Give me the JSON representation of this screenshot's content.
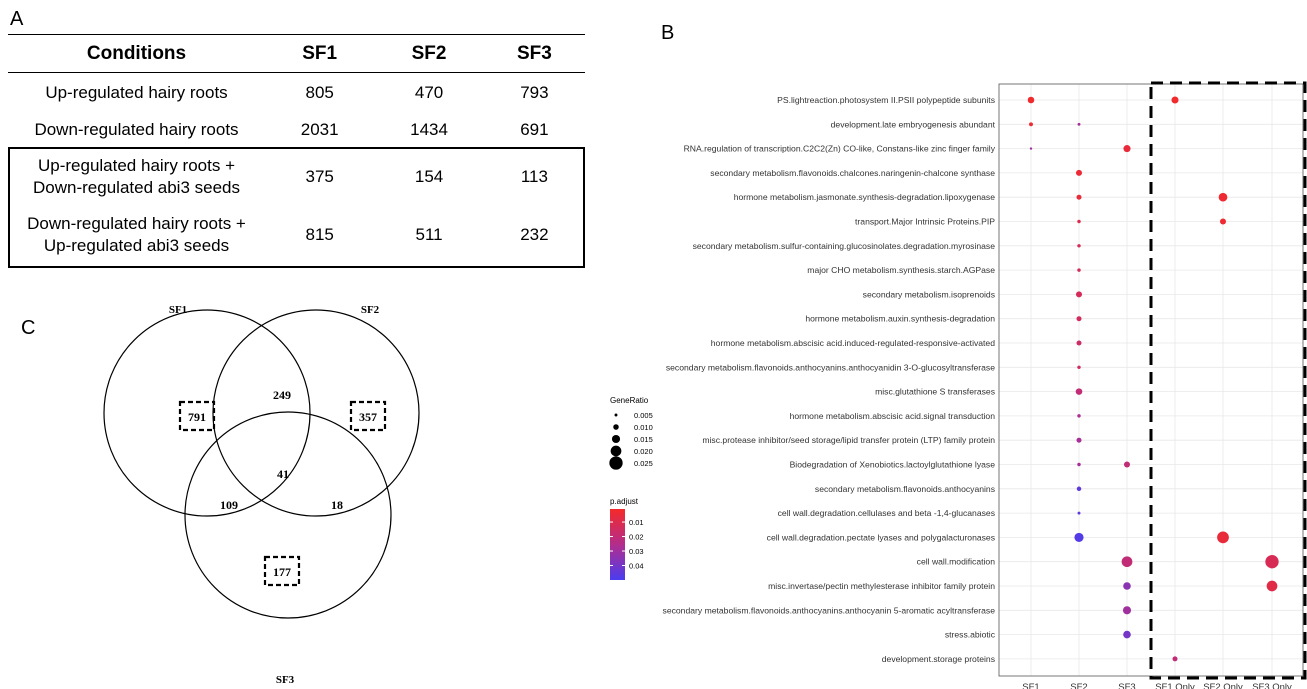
{
  "panels": {
    "a": "A",
    "b": "B",
    "c": "C"
  },
  "table": {
    "headers": [
      "Conditions",
      "SF1",
      "SF2",
      "SF3"
    ],
    "rows": [
      {
        "condition_line1": "Up-regulated hairy roots",
        "condition_line2": "",
        "sf1": "805",
        "sf2": "470",
        "sf3": "793"
      },
      {
        "condition_line1": "Down-regulated hairy roots",
        "condition_line2": "",
        "sf1": "2031",
        "sf2": "1434",
        "sf3": "691"
      },
      {
        "condition_line1": "Up-regulated hairy roots +",
        "condition_line2": "Down-regulated abi3 seeds",
        "sf1": "375",
        "sf2": "154",
        "sf3": "113"
      },
      {
        "condition_line1": "Down-regulated hairy roots +",
        "condition_line2": "Up-regulated abi3 seeds",
        "sf1": "815",
        "sf2": "511",
        "sf3": "232"
      }
    ]
  },
  "venn": {
    "labels": {
      "sf1": "SF1",
      "sf2": "SF2",
      "sf3": "SF3"
    },
    "regions": {
      "sf1_only": "791",
      "sf2_only": "357",
      "sf3_only": "177",
      "sf1_sf2": "249",
      "sf1_sf3": "109",
      "sf2_sf3": "18",
      "all": "41"
    }
  },
  "chart_data": {
    "type": "scatter",
    "x_categories": [
      "SF1",
      "SF2",
      "SF3",
      "SF1.Only",
      "SF2.Only",
      "SF3.Only"
    ],
    "y_categories": [
      "PS.lightreaction.photosystem II.PSII polypeptide subunits",
      "development.late embryogenesis abundant",
      "RNA.regulation of transcription.C2C2(Zn) CO-like, Constans-like zinc finger family",
      "secondary metabolism.flavonoids.chalcones.naringenin-chalcone synthase",
      "hormone metabolism.jasmonate.synthesis-degradation.lipoxygenase",
      "transport.Major Intrinsic Proteins.PIP",
      "secondary metabolism.sulfur-containing.glucosinolates.degradation.myrosinase",
      "major CHO metabolism.synthesis.starch.AGPase",
      "secondary metabolism.isoprenoids",
      "hormone metabolism.auxin.synthesis-degradation",
      "hormone metabolism.abscisic acid.induced-regulated-responsive-activated",
      "secondary metabolism.flavonoids.anthocyanins.anthocyanidin 3-O-glucosyltransferase",
      "misc.glutathione S transferases",
      "hormone metabolism.abscisic acid.signal transduction",
      "misc.protease inhibitor/seed storage/lipid transfer protein (LTP) family protein",
      "Biodegradation of Xenobiotics.lactoylglutathione lyase",
      "secondary metabolism.flavonoids.anthocyanins",
      "cell wall.degradation.cellulases and beta -1,4-glucanases",
      "cell wall.degradation.pectate lyases and polygalacturonases",
      "cell wall.modification",
      "misc.invertase/pectin methylesterase inhibitor family protein",
      "secondary metabolism.flavonoids.anthocyanins.anthocyanin 5-aromatic acyltransferase",
      "stress.abiotic",
      "development.storage proteins"
    ],
    "points": [
      {
        "x": "SF1",
        "y": 0,
        "gene_ratio": 0.012,
        "p_adjust": 0.002
      },
      {
        "x": "SF1.Only",
        "y": 0,
        "gene_ratio": 0.013,
        "p_adjust": 0.002
      },
      {
        "x": "SF1",
        "y": 1,
        "gene_ratio": 0.007,
        "p_adjust": 0.003
      },
      {
        "x": "SF2",
        "y": 1,
        "gene_ratio": 0.005,
        "p_adjust": 0.028
      },
      {
        "x": "SF1",
        "y": 2,
        "gene_ratio": 0.004,
        "p_adjust": 0.03
      },
      {
        "x": "SF3",
        "y": 2,
        "gene_ratio": 0.013,
        "p_adjust": 0.005
      },
      {
        "x": "SF2",
        "y": 3,
        "gene_ratio": 0.011,
        "p_adjust": 0.004
      },
      {
        "x": "SF2",
        "y": 4,
        "gene_ratio": 0.009,
        "p_adjust": 0.005
      },
      {
        "x": "SF2.Only",
        "y": 4,
        "gene_ratio": 0.016,
        "p_adjust": 0.003
      },
      {
        "x": "SF2",
        "y": 5,
        "gene_ratio": 0.006,
        "p_adjust": 0.01
      },
      {
        "x": "SF2.Only",
        "y": 5,
        "gene_ratio": 0.011,
        "p_adjust": 0.003
      },
      {
        "x": "SF2",
        "y": 6,
        "gene_ratio": 0.006,
        "p_adjust": 0.012
      },
      {
        "x": "SF2",
        "y": 7,
        "gene_ratio": 0.006,
        "p_adjust": 0.013
      },
      {
        "x": "SF2",
        "y": 8,
        "gene_ratio": 0.011,
        "p_adjust": 0.013
      },
      {
        "x": "SF2",
        "y": 9,
        "gene_ratio": 0.009,
        "p_adjust": 0.014
      },
      {
        "x": "SF2",
        "y": 10,
        "gene_ratio": 0.009,
        "p_adjust": 0.016
      },
      {
        "x": "SF2",
        "y": 11,
        "gene_ratio": 0.006,
        "p_adjust": 0.016
      },
      {
        "x": "SF2",
        "y": 12,
        "gene_ratio": 0.012,
        "p_adjust": 0.02
      },
      {
        "x": "SF2",
        "y": 13,
        "gene_ratio": 0.006,
        "p_adjust": 0.027
      },
      {
        "x": "SF2",
        "y": 14,
        "gene_ratio": 0.009,
        "p_adjust": 0.028
      },
      {
        "x": "SF2",
        "y": 15,
        "gene_ratio": 0.006,
        "p_adjust": 0.029
      },
      {
        "x": "SF3",
        "y": 15,
        "gene_ratio": 0.011,
        "p_adjust": 0.02
      },
      {
        "x": "SF2",
        "y": 16,
        "gene_ratio": 0.008,
        "p_adjust": 0.045
      },
      {
        "x": "SF2",
        "y": 17,
        "gene_ratio": 0.005,
        "p_adjust": 0.045
      },
      {
        "x": "SF2",
        "y": 18,
        "gene_ratio": 0.017,
        "p_adjust": 0.048
      },
      {
        "x": "SF2.Only",
        "y": 18,
        "gene_ratio": 0.022,
        "p_adjust": 0.005
      },
      {
        "x": "SF3",
        "y": 19,
        "gene_ratio": 0.02,
        "p_adjust": 0.02
      },
      {
        "x": "SF3.Only",
        "y": 19,
        "gene_ratio": 0.025,
        "p_adjust": 0.012
      },
      {
        "x": "SF3",
        "y": 20,
        "gene_ratio": 0.014,
        "p_adjust": 0.035
      },
      {
        "x": "SF3.Only",
        "y": 20,
        "gene_ratio": 0.02,
        "p_adjust": 0.008
      },
      {
        "x": "SF3",
        "y": 21,
        "gene_ratio": 0.015,
        "p_adjust": 0.03
      },
      {
        "x": "SF3",
        "y": 22,
        "gene_ratio": 0.014,
        "p_adjust": 0.04
      },
      {
        "x": "SF1.Only",
        "y": 23,
        "gene_ratio": 0.009,
        "p_adjust": 0.02
      }
    ],
    "size_legend": {
      "title": "GeneRatio",
      "values": [
        0.005,
        0.01,
        0.015,
        0.02,
        0.025
      ],
      "labels": [
        "0.005",
        "0.010",
        "0.015",
        "0.020",
        "0.025"
      ]
    },
    "color_legend": {
      "title": "p.adjust",
      "ticks": [
        0.01,
        0.02,
        0.03,
        0.04
      ],
      "labels": [
        "0.01",
        "0.02",
        "0.03",
        "0.04"
      ],
      "range": [
        0.001,
        0.05
      ],
      "low_color": "#f42a2a",
      "high_color": "#4a3cf0"
    },
    "grid": true,
    "background": "#ffffff",
    "gridline_color": "#e8e8e8",
    "highlight_box": "dashed box around SF1.Only, SF2.Only, SF3.Only"
  }
}
